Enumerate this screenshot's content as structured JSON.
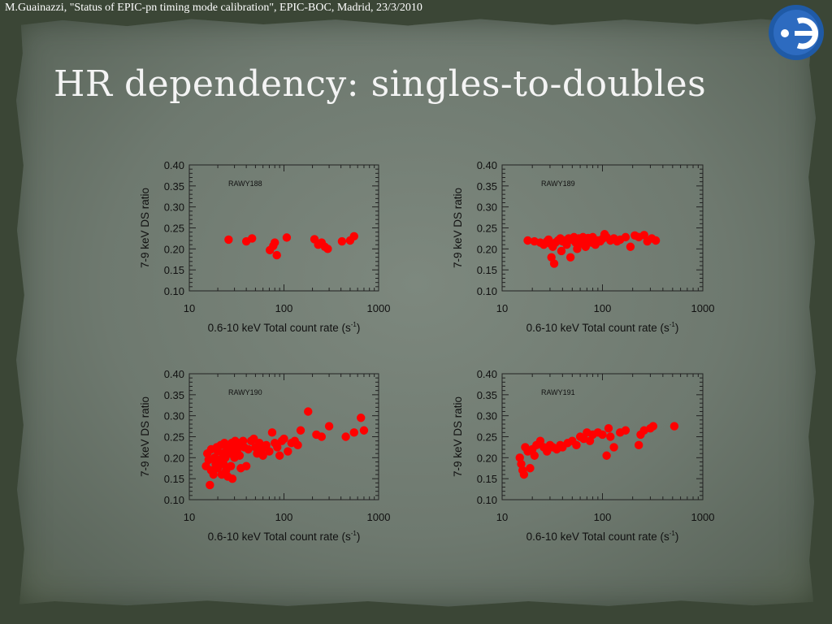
{
  "slide": {
    "citation": "M.Guainazzi, \"Status of EPIC-pn timing mode calibration\", EPIC-BOC, Madrid, 23/3/2010",
    "title": "HR dependency: singles-to-doubles",
    "logo_icon": "esa-logo-icon",
    "colors": {
      "background": "#6e796f",
      "title": "#f4f4f4",
      "marker": "#ff0000",
      "logo": "#1f5aa6"
    }
  },
  "chart_data": [
    {
      "type": "scatter",
      "annotation": "RAWY188",
      "xlabel": "0.6-10 keV Total count rate (s",
      "xlabel_sup": "-1",
      "xlabel_end": ")",
      "ylabel": "7-9 keV DS ratio",
      "xscale": "log",
      "xlim": [
        10,
        1000
      ],
      "ylim": [
        0.1,
        0.4
      ],
      "x_ticks": [
        "10",
        "100",
        "1000"
      ],
      "y_ticks": [
        "0.40",
        "0.35",
        "0.30",
        "0.25",
        "0.20",
        "0.15",
        "0.10"
      ],
      "marker_color": "#ff0000",
      "points": [
        [
          26,
          0.222
        ],
        [
          40,
          0.218
        ],
        [
          46,
          0.225
        ],
        [
          71,
          0.197
        ],
        [
          77,
          0.207
        ],
        [
          80,
          0.215
        ],
        [
          84,
          0.185
        ],
        [
          107,
          0.227
        ],
        [
          210,
          0.223
        ],
        [
          230,
          0.21
        ],
        [
          250,
          0.215
        ],
        [
          270,
          0.205
        ],
        [
          290,
          0.2
        ],
        [
          410,
          0.218
        ],
        [
          500,
          0.22
        ],
        [
          550,
          0.23
        ]
      ]
    },
    {
      "type": "scatter",
      "annotation": "RAWY189",
      "xlabel": "0.6-10 keV Total count rate (s",
      "xlabel_sup": "-1",
      "xlabel_end": ")",
      "ylabel": "7-9 keV DS ratio",
      "xscale": "log",
      "xlim": [
        10,
        1000
      ],
      "ylim": [
        0.1,
        0.4
      ],
      "x_ticks": [
        "10",
        "100",
        "1000"
      ],
      "y_ticks": [
        "0.40",
        "0.35",
        "0.30",
        "0.25",
        "0.20",
        "0.15",
        "0.10"
      ],
      "marker_color": "#ff0000",
      "points": [
        [
          18,
          0.22
        ],
        [
          21,
          0.218
        ],
        [
          24,
          0.215
        ],
        [
          26,
          0.21
        ],
        [
          28,
          0.218
        ],
        [
          29,
          0.222
        ],
        [
          30,
          0.213
        ],
        [
          31,
          0.18
        ],
        [
          32,
          0.205
        ],
        [
          33,
          0.165
        ],
        [
          34,
          0.215
        ],
        [
          36,
          0.22
        ],
        [
          38,
          0.225
        ],
        [
          39,
          0.195
        ],
        [
          40,
          0.218
        ],
        [
          42,
          0.22
        ],
        [
          44,
          0.21
        ],
        [
          46,
          0.225
        ],
        [
          48,
          0.18
        ],
        [
          50,
          0.222
        ],
        [
          52,
          0.228
        ],
        [
          54,
          0.215
        ],
        [
          56,
          0.2
        ],
        [
          58,
          0.225
        ],
        [
          60,
          0.215
        ],
        [
          62,
          0.222
        ],
        [
          64,
          0.228
        ],
        [
          66,
          0.21
        ],
        [
          68,
          0.205
        ],
        [
          70,
          0.22
        ],
        [
          72,
          0.226
        ],
        [
          75,
          0.222
        ],
        [
          78,
          0.215
        ],
        [
          80,
          0.228
        ],
        [
          85,
          0.21
        ],
        [
          90,
          0.22
        ],
        [
          95,
          0.218
        ],
        [
          100,
          0.224
        ],
        [
          105,
          0.235
        ],
        [
          110,
          0.228
        ],
        [
          120,
          0.22
        ],
        [
          130,
          0.225
        ],
        [
          140,
          0.218
        ],
        [
          150,
          0.222
        ],
        [
          170,
          0.228
        ],
        [
          190,
          0.205
        ],
        [
          210,
          0.232
        ],
        [
          230,
          0.228
        ],
        [
          260,
          0.233
        ],
        [
          280,
          0.218
        ],
        [
          310,
          0.225
        ],
        [
          340,
          0.22
        ]
      ]
    },
    {
      "type": "scatter",
      "annotation": "RAWY190",
      "xlabel": "0.6-10 keV Total count rate (s",
      "xlabel_sup": "-1",
      "xlabel_end": ")",
      "ylabel": "7-9 keV DS ratio",
      "xscale": "log",
      "xlim": [
        10,
        1000
      ],
      "ylim": [
        0.1,
        0.4
      ],
      "x_ticks": [
        "10",
        "100",
        "1000"
      ],
      "y_ticks": [
        "0.40",
        "0.35",
        "0.30",
        "0.25",
        "0.20",
        "0.15",
        "0.10"
      ],
      "marker_color": "#ff0000",
      "points": [
        [
          15,
          0.18
        ],
        [
          15.5,
          0.21
        ],
        [
          16,
          0.195
        ],
        [
          16.5,
          0.135
        ],
        [
          17,
          0.17
        ],
        [
          17,
          0.22
        ],
        [
          18,
          0.16
        ],
        [
          18.5,
          0.2
        ],
        [
          19,
          0.185
        ],
        [
          19.5,
          0.225
        ],
        [
          20,
          0.175
        ],
        [
          20,
          0.215
        ],
        [
          21,
          0.195
        ],
        [
          21.5,
          0.23
        ],
        [
          22,
          0.16
        ],
        [
          22.5,
          0.21
        ],
        [
          23,
          0.185
        ],
        [
          23.5,
          0.235
        ],
        [
          24,
          0.2
        ],
        [
          24.5,
          0.17
        ],
        [
          25,
          0.22
        ],
        [
          25.5,
          0.155
        ],
        [
          26,
          0.23
        ],
        [
          27,
          0.21
        ],
        [
          27.5,
          0.18
        ],
        [
          28,
          0.235
        ],
        [
          28.5,
          0.15
        ],
        [
          29,
          0.22
        ],
        [
          30,
          0.2
        ],
        [
          30.5,
          0.24
        ],
        [
          31,
          0.225
        ],
        [
          32,
          0.215
        ],
        [
          33,
          0.235
        ],
        [
          34,
          0.205
        ],
        [
          35,
          0.175
        ],
        [
          36,
          0.23
        ],
        [
          37,
          0.24
        ],
        [
          38,
          0.225
        ],
        [
          40,
          0.18
        ],
        [
          42,
          0.22
        ],
        [
          45,
          0.24
        ],
        [
          48,
          0.245
        ],
        [
          50,
          0.225
        ],
        [
          52,
          0.21
        ],
        [
          55,
          0.235
        ],
        [
          58,
          0.22
        ],
        [
          60,
          0.205
        ],
        [
          65,
          0.23
        ],
        [
          70,
          0.215
        ],
        [
          75,
          0.26
        ],
        [
          80,
          0.235
        ],
        [
          85,
          0.225
        ],
        [
          90,
          0.205
        ],
        [
          95,
          0.24
        ],
        [
          100,
          0.245
        ],
        [
          110,
          0.215
        ],
        [
          120,
          0.235
        ],
        [
          130,
          0.24
        ],
        [
          140,
          0.23
        ],
        [
          150,
          0.265
        ],
        [
          180,
          0.31
        ],
        [
          220,
          0.255
        ],
        [
          250,
          0.25
        ],
        [
          300,
          0.275
        ],
        [
          450,
          0.25
        ],
        [
          550,
          0.26
        ],
        [
          650,
          0.295
        ],
        [
          700,
          0.265
        ]
      ]
    },
    {
      "type": "scatter",
      "annotation": "RAWY191",
      "xlabel": "0.6-10 keV Total count rate (s",
      "xlabel_sup": "-1",
      "xlabel_end": ")",
      "ylabel": "7-9 keV DS ratio",
      "xscale": "log",
      "xlim": [
        10,
        1000
      ],
      "ylim": [
        0.1,
        0.4
      ],
      "x_ticks": [
        "10",
        "100",
        "1000"
      ],
      "y_ticks": [
        "0.40",
        "0.35",
        "0.30",
        "0.25",
        "0.20",
        "0.15",
        "0.10"
      ],
      "marker_color": "#ff0000",
      "points": [
        [
          15,
          0.2
        ],
        [
          15.5,
          0.185
        ],
        [
          16,
          0.17
        ],
        [
          16.5,
          0.16
        ],
        [
          17,
          0.225
        ],
        [
          18,
          0.215
        ],
        [
          19,
          0.175
        ],
        [
          20,
          0.22
        ],
        [
          21,
          0.205
        ],
        [
          22,
          0.23
        ],
        [
          24,
          0.24
        ],
        [
          26,
          0.225
        ],
        [
          28,
          0.215
        ],
        [
          30,
          0.23
        ],
        [
          32,
          0.225
        ],
        [
          35,
          0.22
        ],
        [
          38,
          0.23
        ],
        [
          40,
          0.225
        ],
        [
          45,
          0.235
        ],
        [
          50,
          0.24
        ],
        [
          55,
          0.23
        ],
        [
          60,
          0.25
        ],
        [
          65,
          0.245
        ],
        [
          70,
          0.26
        ],
        [
          75,
          0.24
        ],
        [
          80,
          0.255
        ],
        [
          90,
          0.26
        ],
        [
          100,
          0.255
        ],
        [
          110,
          0.205
        ],
        [
          115,
          0.27
        ],
        [
          120,
          0.25
        ],
        [
          130,
          0.225
        ],
        [
          150,
          0.26
        ],
        [
          170,
          0.265
        ],
        [
          230,
          0.23
        ],
        [
          240,
          0.255
        ],
        [
          260,
          0.265
        ],
        [
          300,
          0.27
        ],
        [
          320,
          0.275
        ],
        [
          520,
          0.275
        ]
      ]
    }
  ]
}
